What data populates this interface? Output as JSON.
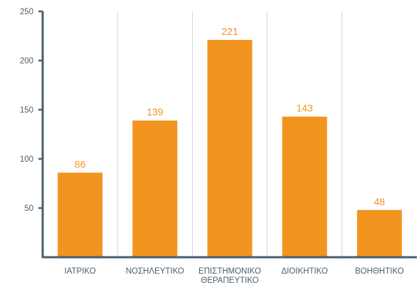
{
  "chart_data": {
    "type": "bar",
    "categories": [
      [
        "ΙΑΤΡΙΚΟ"
      ],
      [
        "ΝΟΣΗΛΕΥΤΙΚΟ"
      ],
      [
        "ΕΠΙΣΤΗΜΟΝΙΚΟ",
        "ΘΕΡΑΠΕΥΤΙΚΟ"
      ],
      [
        "ΔΙΟΙΚΗΤΙΚΟ"
      ],
      [
        "ΒΟΗΘΗΤΙΚΟ"
      ]
    ],
    "value_labels": [
      "86",
      "139",
      "221",
      "143",
      "48"
    ],
    "values": [
      86,
      139,
      221,
      143,
      48
    ],
    "ylim": [
      0,
      250
    ],
    "y_ticks": [
      50,
      100,
      150,
      200,
      250
    ],
    "y_tick_labels": [
      "50",
      "100",
      "150",
      "200",
      "250"
    ],
    "grid": "vertical",
    "colors": {
      "bar": "#F39420",
      "value_label": "#F39420",
      "axis": "#4A5E6D",
      "grid": "#D0D5D9",
      "tick_label": "#4A5E6D"
    }
  }
}
